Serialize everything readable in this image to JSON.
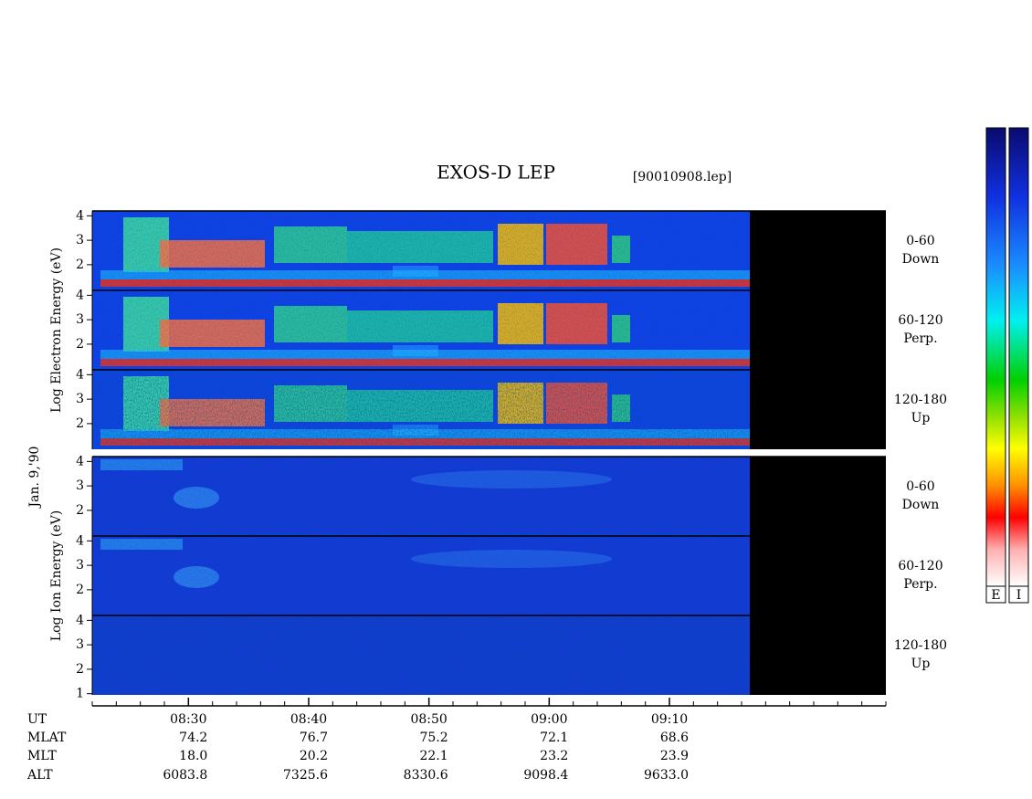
{
  "chart_data": {
    "type": "spectrogram",
    "title": "EXOS-D LEP",
    "file_label": "[90010908.lep]",
    "date_label": "Jan. 9,'90",
    "xlim": [
      502,
      568
    ],
    "xticks": [
      {
        "value": 510,
        "label": "08:30"
      },
      {
        "value": 520,
        "label": "08:40"
      },
      {
        "value": 530,
        "label": "08:50"
      },
      {
        "value": 540,
        "label": "09:00"
      },
      {
        "value": 550,
        "label": "09:10"
      }
    ],
    "xminor_step": 2,
    "ylim": [
      0.95,
      4.2
    ],
    "groups": [
      {
        "ylabel": "Log  Electron  Energy (eV)",
        "species": "electron",
        "panels": [
          {
            "label": "0-60",
            "sublabel": "Down",
            "yticks": [
              2,
              3,
              4
            ]
          },
          {
            "label": "60-120",
            "sublabel": "Perp.",
            "yticks": [
              2,
              3,
              4
            ]
          },
          {
            "label": "120-180",
            "sublabel": "Up",
            "yticks": [
              2,
              3,
              4
            ]
          }
        ]
      },
      {
        "ylabel": "Log  Ion  Energy (eV)",
        "species": "ion",
        "panels": [
          {
            "label": "0-60",
            "sublabel": "Down",
            "yticks": [
              2,
              3,
              4
            ]
          },
          {
            "label": "60-120",
            "sublabel": "Perp.",
            "yticks": [
              2,
              3,
              4
            ]
          },
          {
            "label": "120-180",
            "sublabel": "Up",
            "yticks": [
              1,
              2,
              3,
              4
            ]
          }
        ]
      }
    ],
    "orbit": [
      {
        "name": "UT",
        "values": []
      },
      {
        "name": "MLAT",
        "values": [
          "74.2",
          "76.7",
          "75.2",
          "72.1",
          "68.6"
        ]
      },
      {
        "name": "MLT",
        "values": [
          "18.0",
          "20.2",
          "22.1",
          "23.2",
          "23.9"
        ]
      },
      {
        "name": "ALT",
        "values": [
          "6083.8",
          "7325.6",
          "8330.6",
          "9098.4",
          "9633.0"
        ]
      }
    ],
    "colorbars": [
      "E",
      "I"
    ]
  }
}
